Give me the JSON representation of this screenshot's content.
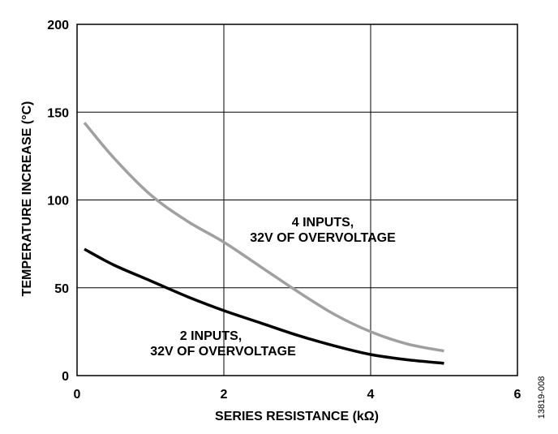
{
  "chart_data": {
    "type": "line",
    "title": "",
    "xlabel": "SERIES RESISTANCE (kΩ)",
    "ylabel": "TEMPERATURE INCREASE (°C)",
    "xlim": [
      0,
      6
    ],
    "ylim": [
      0,
      200
    ],
    "xticks": [
      0,
      2,
      4,
      6
    ],
    "yticks": [
      0,
      50,
      100,
      150,
      200
    ],
    "grid": true,
    "series": [
      {
        "name": "4 INPUTS, 32V OF OVERVOLTAGE",
        "color": "#a0a0a0",
        "x": [
          0.1,
          0.5,
          1.0,
          1.5,
          2.0,
          2.5,
          3.0,
          3.5,
          4.0,
          4.5,
          5.0
        ],
        "y": [
          144,
          124,
          103,
          88,
          76,
          62,
          48,
          35,
          25,
          18,
          14
        ]
      },
      {
        "name": "2 INPUTS, 32V OF OVERVOLTAGE",
        "color": "#000000",
        "x": [
          0.1,
          0.5,
          1.0,
          1.5,
          2.0,
          2.5,
          3.0,
          3.5,
          4.0,
          4.5,
          5.0
        ],
        "y": [
          72,
          63,
          54,
          45,
          37,
          30,
          23,
          17,
          12,
          9,
          7
        ]
      }
    ],
    "annotations": [
      {
        "lines": [
          "4 INPUTS,",
          "32V OF OVERVOLTAGE"
        ]
      },
      {
        "lines": [
          "2 INPUTS,",
          "32V OF OVERVOLTAGE"
        ]
      }
    ]
  },
  "figure_id": "13819-008"
}
